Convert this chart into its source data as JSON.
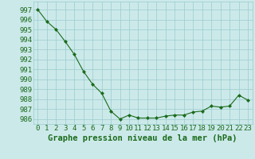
{
  "x": [
    0,
    1,
    2,
    3,
    4,
    5,
    6,
    7,
    8,
    9,
    10,
    11,
    12,
    13,
    14,
    15,
    16,
    17,
    18,
    19,
    20,
    21,
    22,
    23
  ],
  "y": [
    997.0,
    995.8,
    995.0,
    993.8,
    992.5,
    990.8,
    989.5,
    988.6,
    986.8,
    986.0,
    986.4,
    986.1,
    986.1,
    986.1,
    986.3,
    986.4,
    986.4,
    986.7,
    986.8,
    987.3,
    987.2,
    987.3,
    988.4,
    987.9
  ],
  "ylim": [
    985.5,
    997.8
  ],
  "yticks": [
    986,
    987,
    988,
    989,
    990,
    991,
    992,
    993,
    994,
    995,
    996,
    997
  ],
  "xticks": [
    0,
    1,
    2,
    3,
    4,
    5,
    6,
    7,
    8,
    9,
    10,
    11,
    12,
    13,
    14,
    15,
    16,
    17,
    18,
    19,
    20,
    21,
    22,
    23
  ],
  "line_color": "#1a6b1a",
  "marker_color": "#1a6b1a",
  "bg_color": "#cce9ea",
  "grid_color": "#99cccc",
  "xlabel": "Graphe pression niveau de la mer (hPa)",
  "xlabel_color": "#1a6b1a",
  "tick_color": "#1a6b1a",
  "tick_fontsize": 6.5,
  "xlabel_fontsize": 7.5
}
